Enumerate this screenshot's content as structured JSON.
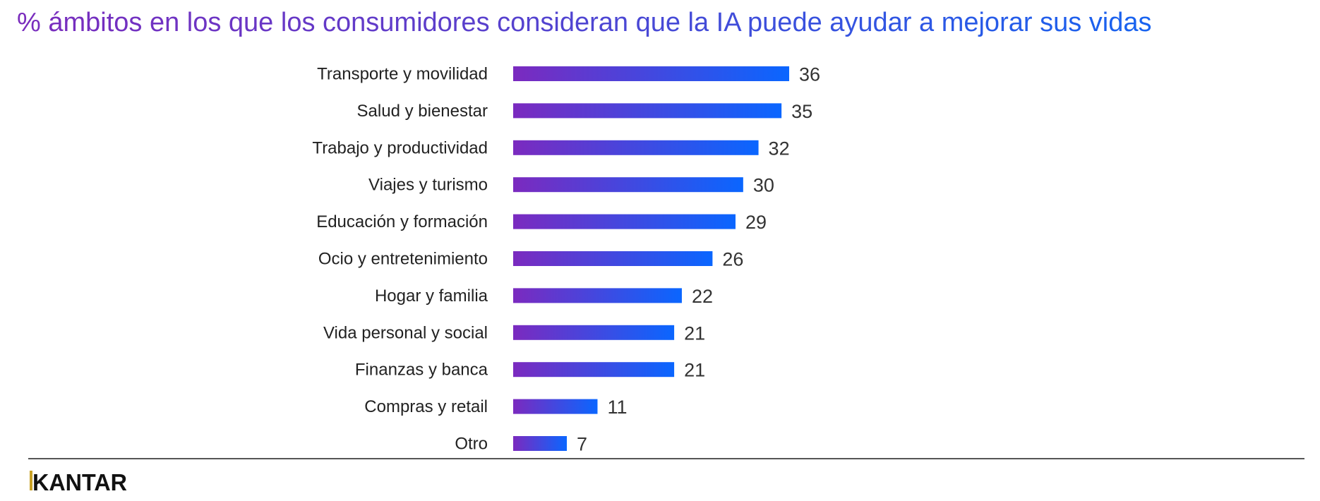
{
  "chart_data": {
    "type": "bar",
    "orientation": "horizontal",
    "title": "% ámbitos en los que los consumidores consideran que la IA puede ayudar a mejorar sus vidas",
    "categories": [
      "Transporte y movilidad",
      "Salud y bienestar",
      "Trabajo y productividad",
      "Viajes y turismo",
      "Educación y formación",
      "Ocio y entretenimiento",
      "Hogar y familia",
      "Vida personal y social",
      "Finanzas y banca",
      "Compras y retail",
      "Otro"
    ],
    "values": [
      36,
      35,
      32,
      30,
      29,
      26,
      22,
      21,
      21,
      11,
      7
    ],
    "xlim": [
      0,
      36
    ],
    "grid": false,
    "legend": "none",
    "colors": {
      "gradient_start": "#7b2abf",
      "gradient_end": "#0a66ff"
    }
  },
  "footer": {
    "brand": "KANTAR",
    "logo_accent": "#c9a227"
  }
}
